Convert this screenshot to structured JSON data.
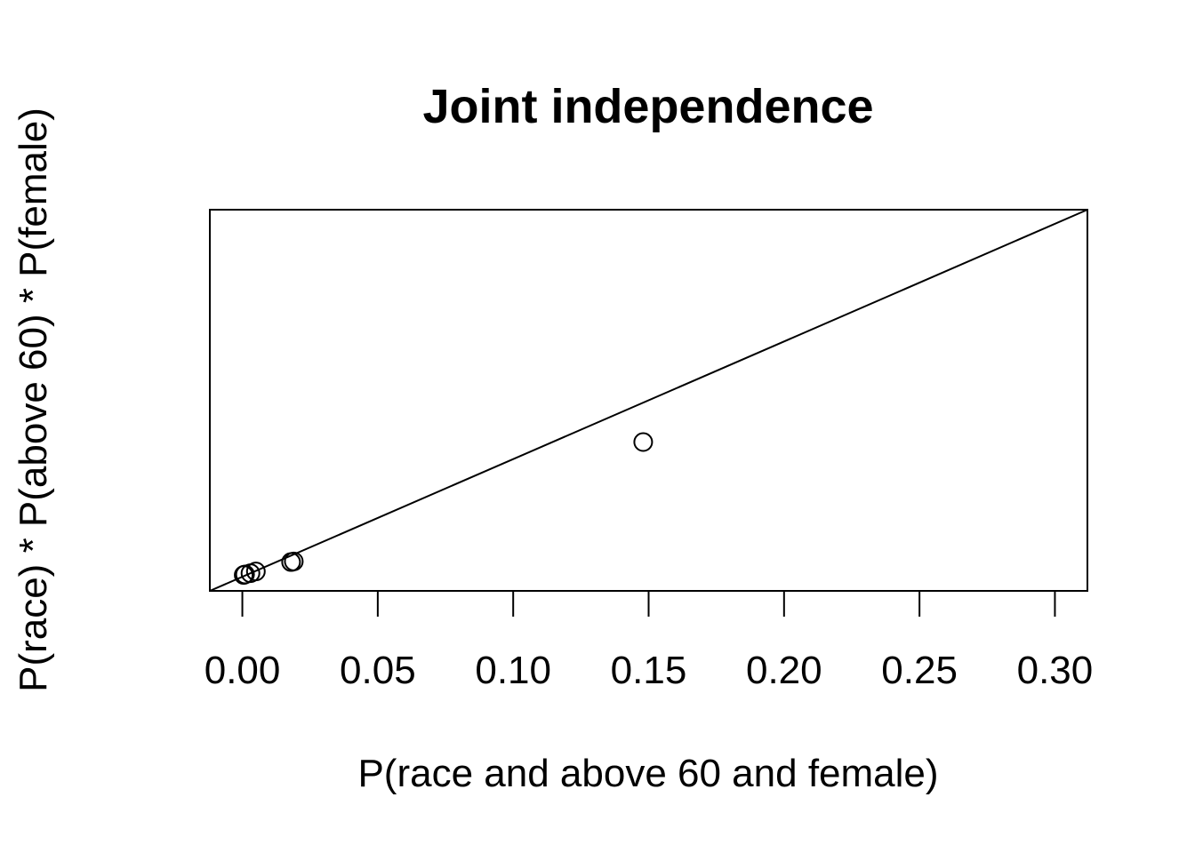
{
  "chart_data": {
    "type": "scatter",
    "title": "Joint independence",
    "xlabel": "P(race and above 60 and female)",
    "ylabel": "P(race) * P(above 60) * P(female)",
    "xlim": [
      -0.012,
      0.312
    ],
    "ylim": [
      -0.012,
      0.312
    ],
    "x_ticks": [
      0.0,
      0.05,
      0.1,
      0.15,
      0.2,
      0.25,
      0.3
    ],
    "x_tick_labels": [
      "0.00",
      "0.05",
      "0.10",
      "0.15",
      "0.20",
      "0.25",
      "0.30"
    ],
    "y_axis_shown": false,
    "grid": false,
    "reference_line": {
      "slope": 1,
      "intercept": 0
    },
    "points": [
      {
        "x": 0.148,
        "y": 0.1145
      },
      {
        "x": 0.018,
        "y": 0.0125
      },
      {
        "x": 0.019,
        "y": 0.013
      },
      {
        "x": 0.005,
        "y": 0.0045
      },
      {
        "x": 0.003,
        "y": 0.003
      },
      {
        "x": 0.001,
        "y": 0.002
      },
      {
        "x": 0.0005,
        "y": 0.0015
      }
    ]
  }
}
